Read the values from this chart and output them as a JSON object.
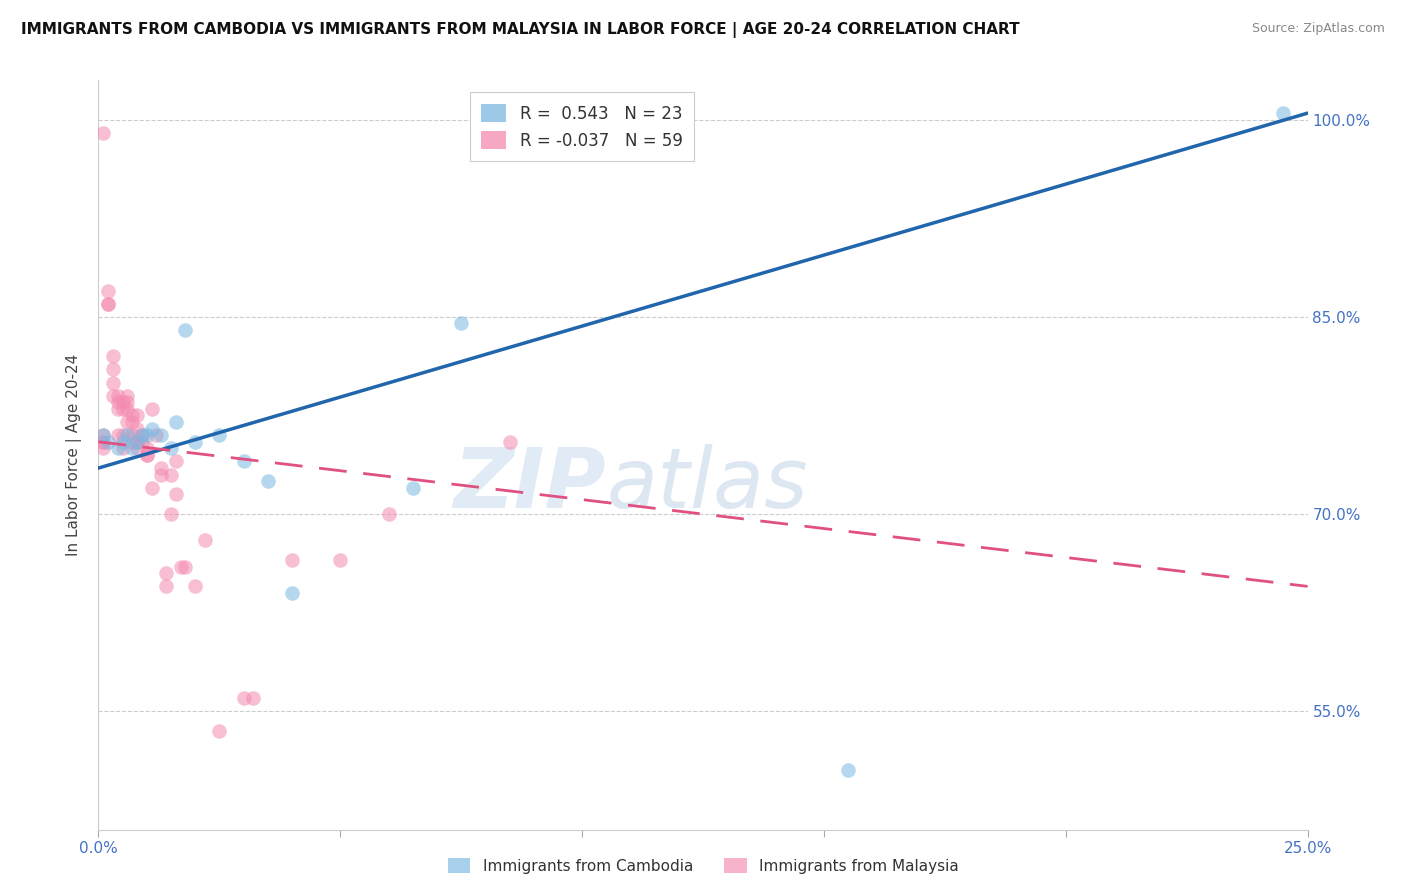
{
  "title": "IMMIGRANTS FROM CAMBODIA VS IMMIGRANTS FROM MALAYSIA IN LABOR FORCE | AGE 20-24 CORRELATION CHART",
  "source": "Source: ZipAtlas.com",
  "ylabel": "In Labor Force | Age 20-24",
  "xlim": [
    0.0,
    0.25
  ],
  "ylim": [
    0.46,
    1.03
  ],
  "xticks": [
    0.0,
    0.05,
    0.1,
    0.15,
    0.2,
    0.25
  ],
  "xtick_labels": [
    "0.0%",
    "",
    "",
    "",
    "",
    "25.0%"
  ],
  "yticks": [
    0.55,
    0.7,
    0.85,
    1.0
  ],
  "ytick_labels": [
    "55.0%",
    "70.0%",
    "85.0%",
    "100.0%"
  ],
  "cambodia_color": "#7ab8e0",
  "malaysia_color": "#f48ab0",
  "cambodia_R": 0.543,
  "cambodia_N": 23,
  "malaysia_R": -0.037,
  "malaysia_N": 59,
  "background_color": "#ffffff",
  "grid_color": "#cccccc",
  "cambodia_trend_x": [
    0.0,
    0.25
  ],
  "cambodia_trend_y": [
    0.735,
    1.005
  ],
  "malaysia_trend_x": [
    0.0,
    0.25
  ],
  "malaysia_trend_y": [
    0.755,
    0.645
  ],
  "cambodia_x": [
    0.001,
    0.002,
    0.004,
    0.005,
    0.006,
    0.007,
    0.008,
    0.009,
    0.01,
    0.011,
    0.013,
    0.015,
    0.016,
    0.018,
    0.02,
    0.025,
    0.03,
    0.035,
    0.04,
    0.065,
    0.075,
    0.155,
    0.245
  ],
  "cambodia_y": [
    0.76,
    0.755,
    0.75,
    0.755,
    0.76,
    0.75,
    0.755,
    0.76,
    0.76,
    0.765,
    0.76,
    0.75,
    0.77,
    0.84,
    0.755,
    0.76,
    0.74,
    0.725,
    0.64,
    0.72,
    0.845,
    0.505,
    1.005
  ],
  "malaysia_x": [
    0.001,
    0.001,
    0.001,
    0.001,
    0.001,
    0.002,
    0.002,
    0.002,
    0.003,
    0.003,
    0.003,
    0.003,
    0.004,
    0.004,
    0.004,
    0.004,
    0.005,
    0.005,
    0.005,
    0.005,
    0.006,
    0.006,
    0.006,
    0.006,
    0.007,
    0.007,
    0.007,
    0.007,
    0.008,
    0.008,
    0.008,
    0.008,
    0.009,
    0.009,
    0.01,
    0.01,
    0.01,
    0.011,
    0.011,
    0.012,
    0.013,
    0.013,
    0.014,
    0.014,
    0.015,
    0.015,
    0.016,
    0.016,
    0.017,
    0.018,
    0.02,
    0.022,
    0.025,
    0.03,
    0.032,
    0.04,
    0.05,
    0.06,
    0.085
  ],
  "malaysia_y": [
    0.99,
    0.755,
    0.76,
    0.755,
    0.75,
    0.86,
    0.86,
    0.87,
    0.82,
    0.81,
    0.8,
    0.79,
    0.79,
    0.785,
    0.78,
    0.76,
    0.785,
    0.78,
    0.76,
    0.75,
    0.79,
    0.785,
    0.78,
    0.77,
    0.775,
    0.77,
    0.76,
    0.755,
    0.775,
    0.765,
    0.755,
    0.75,
    0.76,
    0.755,
    0.75,
    0.745,
    0.745,
    0.78,
    0.72,
    0.76,
    0.735,
    0.73,
    0.655,
    0.645,
    0.73,
    0.7,
    0.74,
    0.715,
    0.66,
    0.66,
    0.645,
    0.68,
    0.535,
    0.56,
    0.56,
    0.665,
    0.665,
    0.7,
    0.755
  ]
}
